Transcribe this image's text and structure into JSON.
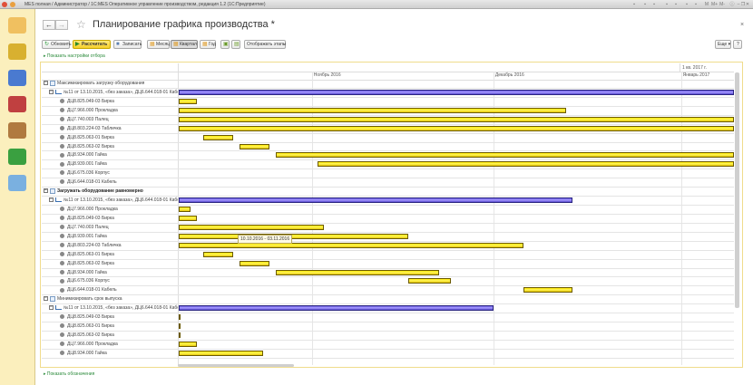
{
  "window": {
    "title": "MES полная / Администратор / 1С:MES Оперативное управление производством, редакция 1.2  (1С:Предприятие)",
    "controls": [
      "save-icon",
      "print-icon",
      "preview-icon",
      "home-icon",
      "favorites-icon",
      "calendar-icon",
      "calculator-icon",
      "M",
      "M+",
      "M-",
      "info-icon",
      "minimize-icon",
      "restore-icon",
      "close-icon"
    ]
  },
  "sidebar": {
    "items": [
      {
        "icon": "desk-lamp-icon"
      },
      {
        "icon": "binders-icon"
      },
      {
        "icon": "truck-icon"
      },
      {
        "icon": "factory-icon"
      },
      {
        "icon": "toolbox-icon"
      },
      {
        "icon": "refresh-green-icon"
      },
      {
        "icon": "database-computer-icon"
      }
    ]
  },
  "header": {
    "title": "Планирование графика производства *",
    "close": "×"
  },
  "toolbar": {
    "refresh": "Обновить",
    "calculate": "Рассчитать",
    "save": "Записать",
    "month": "Месяц",
    "quarter": "Квартал",
    "year": "Год",
    "show_stages": "Отображать этапы",
    "more": "Еще ▾",
    "help": "?",
    "selected_scale": "Квартал"
  },
  "links": {
    "filter": "Показать настройки отбора",
    "legend": "Показать обозначения"
  },
  "timeline": {
    "quarter_label": "1 кв. 2017 г.",
    "months": [
      "Ноябрь 2016",
      "Декабрь 2016",
      "Январь 2017"
    ],
    "view_start": "2016-10-10"
  },
  "tooltip": "10.10.2016 - 03.11.2016",
  "colors": {
    "item_bar": "#ffe800",
    "order_bar": "#8a7cf0",
    "link": "#2a8a3a",
    "sidebar": "#fbefbd"
  },
  "groups": [
    {
      "label": "Максимизировать загрузку оборудования",
      "bold": false,
      "order": {
        "label": "№11 от 13.10.2015, «без заказа», ДЦ6.644.018-01 Кабель",
        "start": "2016-10-10",
        "end": null
      },
      "items": [
        {
          "label": "ДЦ8.825.049-03 Бирка",
          "start": "2016-10-10",
          "end": "2016-10-13"
        },
        {
          "label": "ДЦ7.966.000 Прокладка",
          "start": "2016-10-10",
          "end": "2016-12-13"
        },
        {
          "label": "ДЦ7.740.003 Палец",
          "start": "2016-10-10",
          "end": null
        },
        {
          "label": "ДЦ8.803.224-03 Табличка",
          "start": "2016-10-10",
          "end": null
        },
        {
          "label": "ДЦ8.825.063-01 Бирка",
          "start": "2016-10-14",
          "end": "2016-10-19"
        },
        {
          "label": "ДЦ8.825.063-02 Бирка",
          "start": "2016-10-20",
          "end": "2016-10-25"
        },
        {
          "label": "ДЦ8.934.000 Гайка",
          "start": "2016-10-26",
          "end": null
        },
        {
          "label": "ДЦ8.939.001 Гайка",
          "start": "2016-11-02",
          "end": null
        },
        {
          "label": "ДЦ6.675.036 Корпус"
        },
        {
          "label": "ДЦ6.644.018-01 Кабель"
        }
      ]
    },
    {
      "label": "Загружать оборудование равномерно",
      "bold": true,
      "order": {
        "label": "№11 от 13.10.2015, «без заказа», ДЦ6.644.018-01 Кабель",
        "start": "2016-10-10",
        "end": "2016-12-14"
      },
      "items": [
        {
          "label": "ДЦ7.966.000 Прокладка",
          "start": "2016-10-10",
          "end": "2016-10-12"
        },
        {
          "label": "ДЦ8.825.049-03 Бирка",
          "start": "2016-10-10",
          "end": "2016-10-13"
        },
        {
          "label": "ДЦ7.740.003 Палец",
          "start": "2016-10-10",
          "end": "2016-11-03"
        },
        {
          "label": "ДЦ8.939.001 Гайка",
          "start": "2016-10-10",
          "end": "2016-11-17"
        },
        {
          "label": "ДЦ8.803.224-03 Табличка",
          "start": "2016-10-10",
          "end": "2016-12-06"
        },
        {
          "label": "ДЦ8.825.063-01 Бирка",
          "start": "2016-10-14",
          "end": "2016-10-19"
        },
        {
          "label": "ДЦ8.825.063-02 Бирка",
          "start": "2016-10-20",
          "end": "2016-10-25"
        },
        {
          "label": "ДЦ8.934.000 Гайка",
          "start": "2016-10-26",
          "end": "2016-11-22"
        },
        {
          "label": "ДЦ6.675.036 Корпус",
          "start": "2016-11-17",
          "end": "2016-11-24"
        },
        {
          "label": "ДЦ6.644.018-01 Кабель",
          "start": "2016-12-06",
          "end": "2016-12-14"
        }
      ]
    },
    {
      "label": "Минимизировать срок выпуска",
      "bold": false,
      "order": {
        "label": "№11 от 13.10.2015, «без заказа», ДЦ6.644.018-01 Кабель",
        "start": "2016-10-10",
        "end": "2016-12-01"
      },
      "items": [
        {
          "label": "ДЦ8.825.049-03 Бирка",
          "start": "2016-10-10",
          "end": "2016-10-10"
        },
        {
          "label": "ДЦ8.825.063-01 Бирка",
          "start": "2016-10-10",
          "end": "2016-10-10"
        },
        {
          "label": "ДЦ8.825.063-02 Бирка",
          "start": "2016-10-10",
          "end": "2016-10-10"
        },
        {
          "label": "ДЦ7.966.000 Прокладка",
          "start": "2016-10-10",
          "end": "2016-10-13"
        },
        {
          "label": "ДЦ8.934.000 Гайка",
          "start": "2016-10-10",
          "end": "2016-10-24"
        }
      ]
    }
  ]
}
